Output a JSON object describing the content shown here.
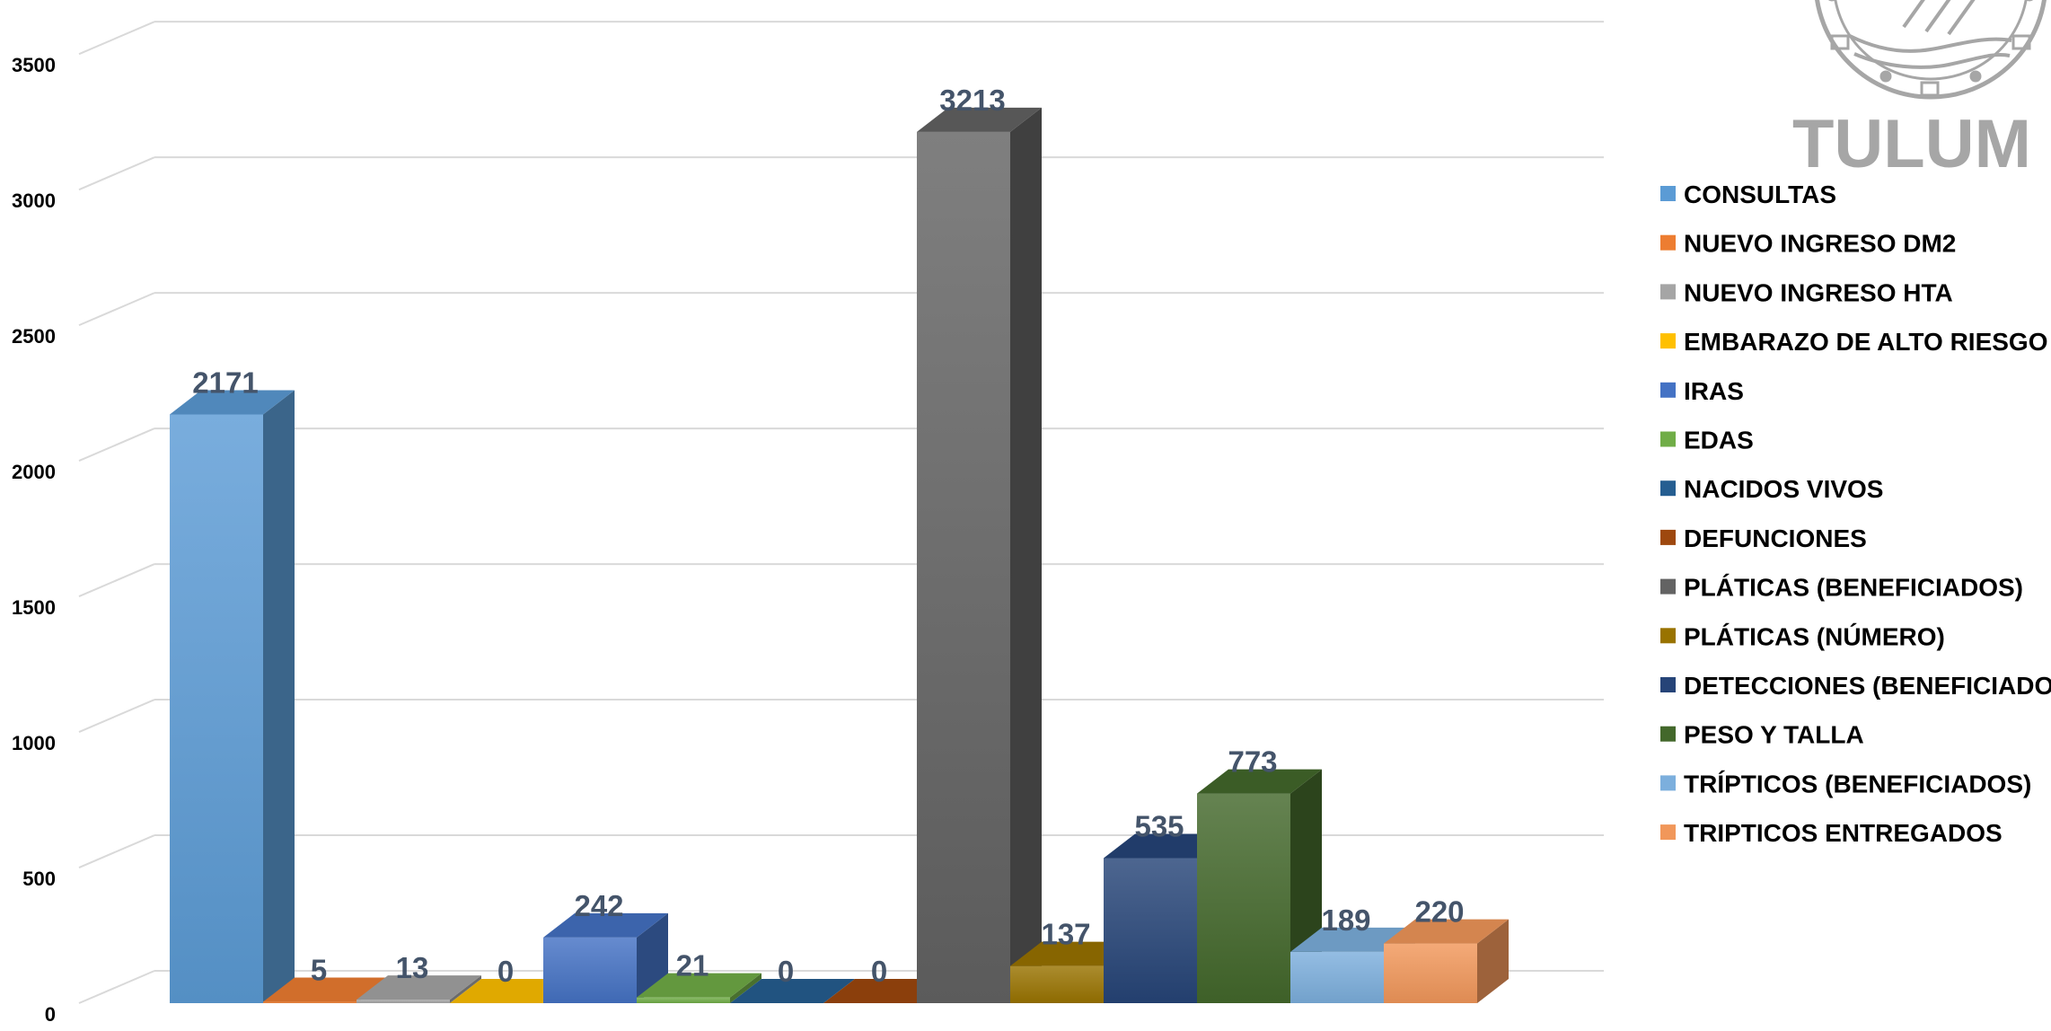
{
  "chart_data": {
    "type": "bar",
    "title": "",
    "xlabel": "",
    "ylabel": "",
    "ylim": [
      0,
      3700
    ],
    "yticks": [
      0,
      500,
      1000,
      1500,
      2000,
      2500,
      3000,
      3500
    ],
    "grid": true,
    "legend_position": "right",
    "categories": [
      "CONSULTAS",
      "NUEVO INGRESO DM2",
      "NUEVO INGRESO HTA",
      "EMBARAZO DE ALTO RIESGO",
      "IRAS",
      "EDAS",
      "NACIDOS VIVOS",
      "DEFUNCIONES",
      "PLÁTICAS (BENEFICIADOS)",
      "PLÁTICAS (NÚMERO)",
      "DETECCIONES (BENEFICIADOS)",
      "PESO Y TALLA",
      "TRÍPTICOS (BENEFICIADOS)",
      "TRIPTICOS ENTREGADOS"
    ],
    "values": [
      2171,
      5,
      13,
      0,
      242,
      21,
      0,
      0,
      3213,
      137,
      535,
      773,
      189,
      220
    ],
    "colors": [
      "#5b9bd5",
      "#ed7d31",
      "#a5a5a5",
      "#ffc000",
      "#4472c4",
      "#70ad47",
      "#255e91",
      "#9e480e",
      "#636363",
      "#997300",
      "#264478",
      "#43682b",
      "#7cafdd",
      "#f1975a"
    ]
  },
  "logo": {
    "text": "TULUM",
    "icon": "tulum-seal-icon",
    "color": "#a6a6a6"
  }
}
